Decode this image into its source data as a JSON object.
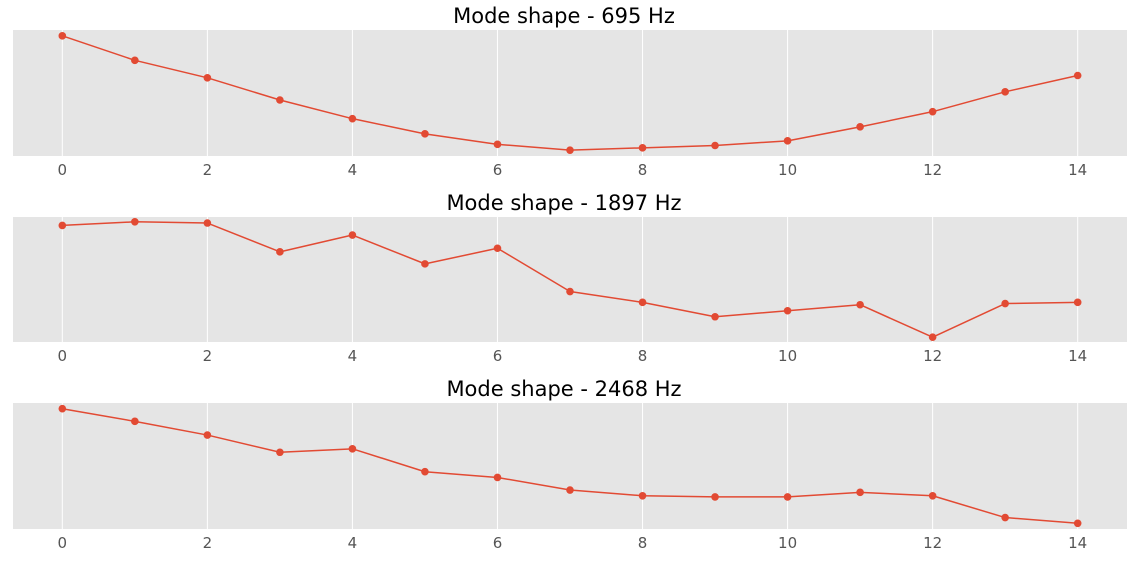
{
  "chart_data": [
    {
      "type": "line",
      "title": "Mode shape - 695 Hz",
      "x": [
        0,
        1,
        2,
        3,
        4,
        5,
        6,
        7,
        8,
        9,
        10,
        11,
        12,
        13,
        14
      ],
      "series": [
        {
          "values": [
            1.0,
            0.79,
            0.64,
            0.45,
            0.29,
            0.16,
            0.07,
            0.02,
            0.04,
            0.06,
            0.1,
            0.22,
            0.35,
            0.52,
            0.66
          ]
        }
      ],
      "xticks": [
        0,
        2,
        4,
        6,
        8,
        10,
        12,
        14
      ],
      "xlim": [
        -0.68,
        14.68
      ],
      "ylim": [
        -0.03,
        1.05
      ],
      "grid": true,
      "y_tick_labels_shown": false,
      "colors": {
        "line": "#e24a33",
        "background": "#e5e5e5",
        "grid": "#ffffff"
      }
    },
    {
      "type": "line",
      "title": "Mode shape - 1897 Hz",
      "x": [
        0,
        1,
        2,
        3,
        4,
        5,
        6,
        7,
        8,
        9,
        10,
        11,
        12,
        13,
        14
      ],
      "series": [
        {
          "values": [
            0.97,
            1.0,
            0.99,
            0.75,
            0.89,
            0.65,
            0.78,
            0.42,
            0.33,
            0.21,
            0.26,
            0.31,
            0.04,
            0.32,
            0.33
          ]
        }
      ],
      "xticks": [
        0,
        2,
        4,
        6,
        8,
        10,
        12,
        14
      ],
      "xlim": [
        -0.68,
        14.68
      ],
      "ylim": [
        0.0,
        1.04
      ],
      "grid": true,
      "y_tick_labels_shown": false,
      "colors": {
        "line": "#e24a33",
        "background": "#e5e5e5",
        "grid": "#ffffff"
      }
    },
    {
      "type": "line",
      "title": "Mode shape - 2468 Hz",
      "x": [
        0,
        1,
        2,
        3,
        4,
        5,
        6,
        7,
        8,
        9,
        10,
        11,
        12,
        13,
        14
      ],
      "series": [
        {
          "values": [
            1.0,
            0.89,
            0.77,
            0.62,
            0.65,
            0.45,
            0.4,
            0.29,
            0.24,
            0.23,
            0.23,
            0.27,
            0.24,
            0.05,
            0.0
          ]
        }
      ],
      "xticks": [
        0,
        2,
        4,
        6,
        8,
        10,
        12,
        14
      ],
      "xlim": [
        -0.68,
        14.68
      ],
      "ylim": [
        -0.05,
        1.05
      ],
      "grid": true,
      "y_tick_labels_shown": false,
      "colors": {
        "line": "#e24a33",
        "background": "#e5e5e5",
        "grid": "#ffffff"
      }
    }
  ]
}
